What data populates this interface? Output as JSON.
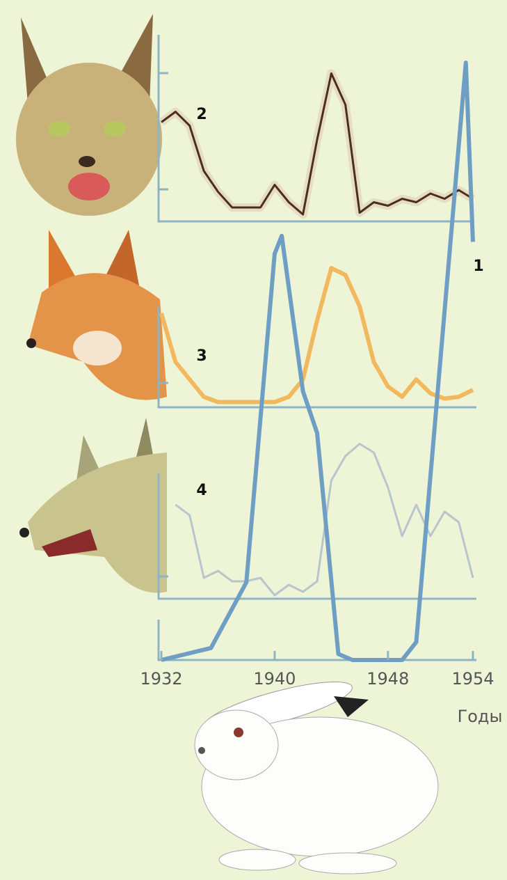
{
  "chart_data": [
    {
      "type": "line",
      "series": [
        {
          "name": "2",
          "color": "#4a2e1e",
          "values": [
            57,
            63,
            55,
            29,
            17,
            8,
            8,
            8,
            21,
            11,
            4,
            47,
            85,
            67,
            5,
            11,
            9,
            13,
            11,
            16,
            13,
            18,
            13
          ]
        }
      ],
      "x": [
        1932,
        1933,
        1934,
        1935,
        1936,
        1937,
        1938,
        1939,
        1940,
        1941,
        1942,
        1943,
        1944,
        1945,
        1946,
        1947,
        1948,
        1949,
        1950,
        1951,
        1952,
        1953,
        1954
      ],
      "ylim": [
        0,
        100
      ]
    },
    {
      "type": "line",
      "series": [
        {
          "name": "3",
          "color": "#f2b85e",
          "values": [
            54,
            26,
            16,
            6,
            3,
            3,
            3,
            3,
            3,
            6,
            16,
            50,
            80,
            76,
            58,
            26,
            12,
            6,
            16,
            8,
            5,
            6,
            10
          ]
        }
      ],
      "x": [
        1932,
        1933,
        1934,
        1935,
        1936,
        1937,
        1938,
        1939,
        1940,
        1941,
        1942,
        1943,
        1944,
        1945,
        1946,
        1947,
        1948,
        1949,
        1950,
        1951,
        1952,
        1953,
        1954
      ],
      "ylim": [
        0,
        100
      ]
    },
    {
      "type": "line",
      "series": [
        {
          "name": "4",
          "color": "#b9c5cc",
          "values": [
            null,
            54,
            48,
            12,
            16,
            10,
            10,
            12,
            2,
            8,
            4,
            10,
            68,
            82,
            89,
            84,
            64,
            36,
            54,
            36,
            50,
            44,
            12
          ]
        }
      ],
      "x": [
        1932,
        1933,
        1934,
        1935,
        1936,
        1937,
        1938,
        1939,
        1940,
        1941,
        1942,
        1943,
        1944,
        1945,
        1946,
        1947,
        1948,
        1949,
        1950,
        1951,
        1952,
        1953,
        1954
      ],
      "ylim": [
        0,
        100
      ]
    },
    {
      "type": "line",
      "series": [
        {
          "name": "1",
          "color": "#6e9ec4",
          "values": [
            0,
            2,
            13,
            68,
            71,
            45,
            38,
            1,
            0,
            0,
            3,
            100,
            70
          ]
        }
      ],
      "x": [
        1932,
        1935.5,
        1938,
        1940,
        1940.5,
        1942,
        1943,
        1944.5,
        1945.5,
        1949,
        1950,
        1953.5,
        1954
      ],
      "ylim": [
        0,
        100
      ],
      "xlim": [
        1932,
        1954
      ],
      "xticks": [
        1932,
        1940,
        1948,
        1954
      ],
      "x_label": "Годы"
    }
  ]
}
